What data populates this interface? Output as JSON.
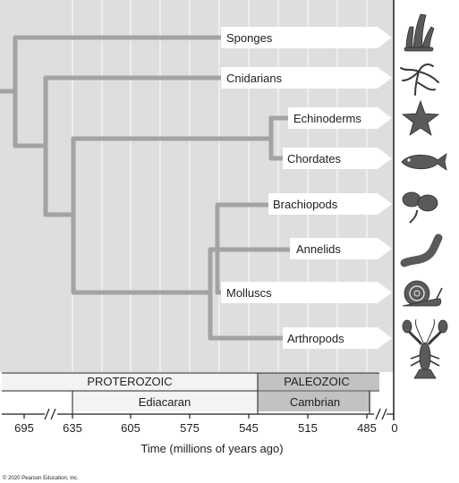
{
  "taxa": [
    {
      "id": "sponges",
      "label": "Sponges",
      "icon": "sponge-icon"
    },
    {
      "id": "cnidarians",
      "label": "Cnidarians",
      "icon": "cnidarian-icon"
    },
    {
      "id": "echinoderms",
      "label": "Echinoderms",
      "icon": "starfish-icon"
    },
    {
      "id": "chordates",
      "label": "Chordates",
      "icon": "fish-icon"
    },
    {
      "id": "brachiopods",
      "label": "Brachiopods",
      "icon": "brachiopod-icon"
    },
    {
      "id": "annelids",
      "label": "Annelids",
      "icon": "worm-icon"
    },
    {
      "id": "molluscs",
      "label": "Molluscs",
      "icon": "snail-icon"
    },
    {
      "id": "arthropods",
      "label": "Arthropods",
      "icon": "lobster-icon"
    }
  ],
  "eras": [
    {
      "label": "PROTEROZOIC"
    },
    {
      "label": "PALEOZOIC"
    }
  ],
  "periods": [
    {
      "label": "Ediacaran"
    },
    {
      "label": "Cambrian"
    }
  ],
  "axis": {
    "title": "Time (millions of years ago)",
    "ticks": [
      "695",
      "635",
      "605",
      "575",
      "545",
      "515",
      "485",
      "0"
    ]
  },
  "credit": "© 2020 Pearson Education, Inc.",
  "colors": {
    "background": "#dedede",
    "grid": "#f2f2f2",
    "branch": "#a3a3a3",
    "paleozoic_fill": "#c2c2c2",
    "proterozoic_fill": "#f3f3f3"
  }
}
